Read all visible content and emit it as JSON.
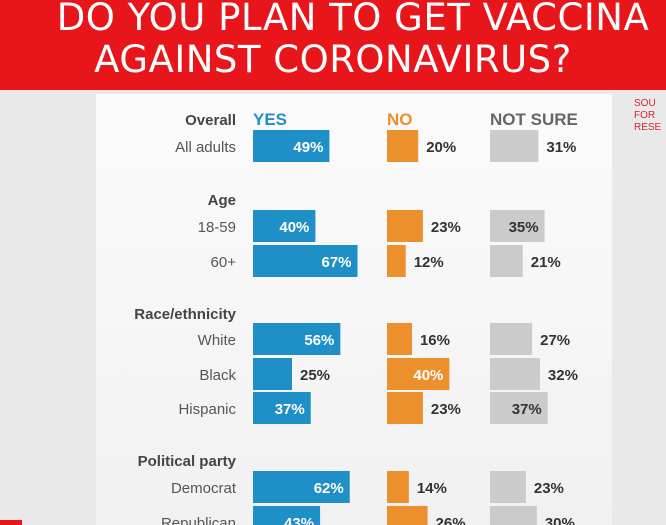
{
  "header": {
    "line1": "DO YOU PLAN TO GET VACCINA",
    "line2": "AGAINST CORONAVIRUS?"
  },
  "source_fragment": "SOU\nFOR\nRESE",
  "colors": {
    "yes": "#1f8fc8",
    "no": "#ec8f2d",
    "not_sure": "#cbcbcb",
    "banner": "#e8161b"
  },
  "chart_data": {
    "type": "bar",
    "title": "DO YOU PLAN TO GET VACCINATED AGAINST CORONAVIRUS?",
    "series": [
      {
        "name": "YES",
        "color": "#1f8fc8"
      },
      {
        "name": "NO",
        "color": "#ec8f2d"
      },
      {
        "name": "NOT SURE",
        "color": "#cbcbcb"
      }
    ],
    "groups": [
      {
        "label": "Overall",
        "rows": [
          {
            "label": "All adults",
            "values": [
              49,
              20,
              31
            ]
          }
        ]
      },
      {
        "label": "Age",
        "rows": [
          {
            "label": "18-59",
            "values": [
              40,
              23,
              35
            ]
          },
          {
            "label": "60+",
            "values": [
              67,
              12,
              21
            ]
          }
        ]
      },
      {
        "label": "Race/ethnicity",
        "rows": [
          {
            "label": "White",
            "values": [
              56,
              16,
              27
            ]
          },
          {
            "label": "Black",
            "values": [
              25,
              40,
              32
            ]
          },
          {
            "label": "Hispanic",
            "values": [
              37,
              23,
              37
            ]
          }
        ]
      },
      {
        "label": "Political party",
        "rows": [
          {
            "label": "Democrat",
            "values": [
              62,
              14,
              23
            ]
          },
          {
            "label": "Republican",
            "values": [
              43,
              26,
              30
            ]
          }
        ]
      }
    ],
    "value_suffix": "%"
  }
}
